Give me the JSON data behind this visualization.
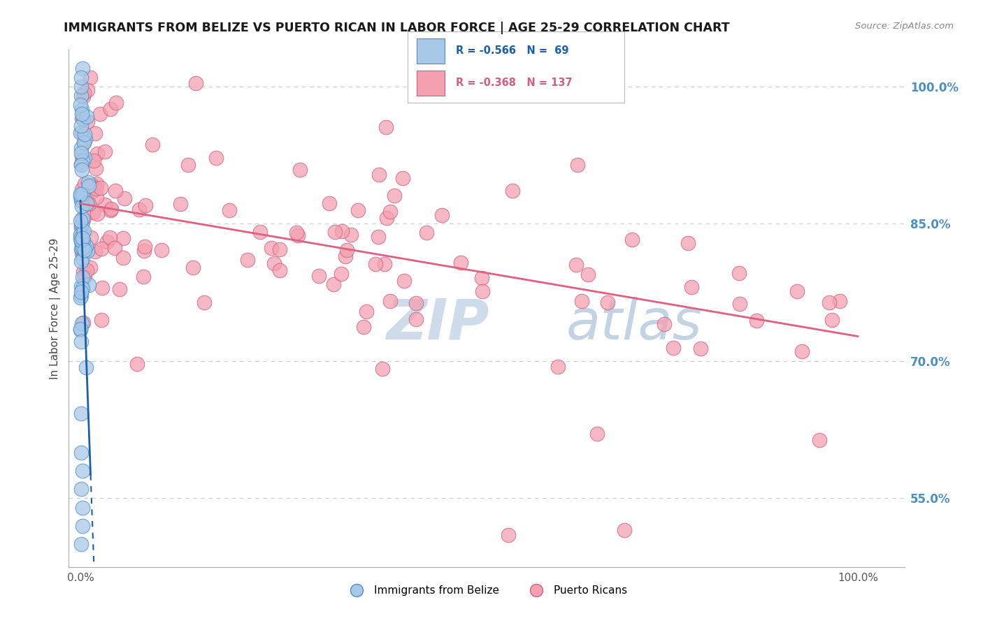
{
  "title": "IMMIGRANTS FROM BELIZE VS PUERTO RICAN IN LABOR FORCE | AGE 25-29 CORRELATION CHART",
  "source": "Source: ZipAtlas.com",
  "ylabel": "In Labor Force | Age 25-29",
  "ytick_vals": [
    0.55,
    0.7,
    0.85,
    1.0
  ],
  "ytick_labels": [
    "55.0%",
    "70.0%",
    "85.0%",
    "100.0%"
  ],
  "xtick_vals": [
    0.0,
    1.0
  ],
  "xtick_labels": [
    "0.0%",
    "100.0%"
  ],
  "legend_belize_r": "R = -0.566",
  "legend_belize_n": "N =  69",
  "legend_pr_r": "R = -0.368",
  "legend_pr_n": "N = 137",
  "belize_face": "#a8c8e8",
  "belize_edge": "#4a90c4",
  "pr_face": "#f4a0b0",
  "pr_edge": "#d06080",
  "belize_line_color": "#1a5fa8",
  "pr_line_color": "#e06080",
  "grid_color": "#cccccc",
  "watermark_zip_color": "#c5d5e8",
  "watermark_atlas_color": "#b8cce0",
  "background": "#ffffff",
  "title_color": "#1a1a1a",
  "source_color": "#888888",
  "tick_color": "#555555",
  "ylabel_color": "#444444",
  "right_tick_color": "#4a90c4",
  "xlim": [
    -0.015,
    1.06
  ],
  "ylim": [
    0.475,
    1.04
  ]
}
